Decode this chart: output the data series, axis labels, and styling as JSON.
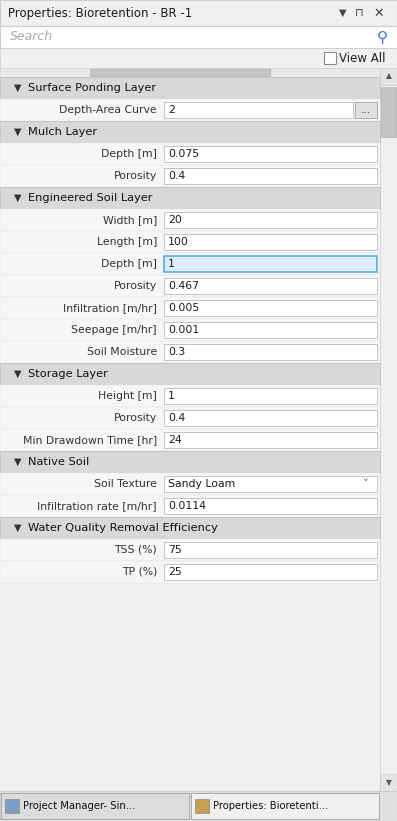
{
  "title": "Properties: Bioretention - BR -1",
  "search_placeholder": "Search",
  "view_all_text": "View All",
  "bg_color": "#f0f0f0",
  "title_bar_bg": "#f0f0f0",
  "search_bg": "#ffffff",
  "viewall_bg": "#f0f0f0",
  "section_header_bg": "#d0d0d0",
  "field_row_bg": "#f8f8f8",
  "field_box_bg": "#ffffff",
  "active_field_bg": "#ddeeff",
  "active_field_border": "#5aaee0",
  "scrollbar_bg": "#e8e8e8",
  "scrollbar_thumb": "#c8c8c8",
  "taskbar_bg": "#e8e8e8",
  "sections": [
    {
      "name": "Surface Ponding Layer",
      "fields": [
        {
          "label": "Depth-Area Curve",
          "value": "2",
          "has_button": true,
          "active": false,
          "is_dropdown": false
        }
      ]
    },
    {
      "name": "Mulch Layer",
      "fields": [
        {
          "label": "Depth [m]",
          "value": "0.075",
          "has_button": false,
          "active": false,
          "is_dropdown": false
        },
        {
          "label": "Porosity",
          "value": "0.4",
          "has_button": false,
          "active": false,
          "is_dropdown": false
        }
      ]
    },
    {
      "name": "Engineered Soil Layer",
      "fields": [
        {
          "label": "Width [m]",
          "value": "20",
          "has_button": false,
          "active": false,
          "is_dropdown": false
        },
        {
          "label": "Length [m]",
          "value": "100",
          "has_button": false,
          "active": false,
          "is_dropdown": false
        },
        {
          "label": "Depth [m]",
          "value": "1",
          "has_button": false,
          "active": true,
          "is_dropdown": false
        },
        {
          "label": "Porosity",
          "value": "0.467",
          "has_button": false,
          "active": false,
          "is_dropdown": false
        },
        {
          "label": "Infiltration [m/hr]",
          "value": "0.005",
          "has_button": false,
          "active": false,
          "is_dropdown": false
        },
        {
          "label": "Seepage [m/hr]",
          "value": "0.001",
          "has_button": false,
          "active": false,
          "is_dropdown": false
        },
        {
          "label": "Soil Moisture",
          "value": "0.3",
          "has_button": false,
          "active": false,
          "is_dropdown": false
        }
      ]
    },
    {
      "name": "Storage Layer",
      "fields": [
        {
          "label": "Height [m]",
          "value": "1",
          "has_button": false,
          "active": false,
          "is_dropdown": false
        },
        {
          "label": "Porosity",
          "value": "0.4",
          "has_button": false,
          "active": false,
          "is_dropdown": false
        },
        {
          "label": "Min Drawdown Time [hr]",
          "value": "24",
          "has_button": false,
          "active": false,
          "is_dropdown": false
        }
      ]
    },
    {
      "name": "Native Soil",
      "fields": [
        {
          "label": "Soil Texture",
          "value": "Sandy Loam",
          "has_button": false,
          "active": false,
          "is_dropdown": true
        },
        {
          "label": "Infiltration rate [m/hr]",
          "value": "0.0114",
          "has_button": false,
          "active": false,
          "is_dropdown": false
        }
      ]
    },
    {
      "name": "Water Quality Removal Efficiency",
      "fields": [
        {
          "label": "TSS (%)",
          "value": "75",
          "has_button": false,
          "active": false,
          "is_dropdown": false
        },
        {
          "label": "TP (%)",
          "value": "25",
          "has_button": false,
          "active": false,
          "is_dropdown": false
        }
      ]
    }
  ],
  "taskbar": [
    "Project Manager- Sin...",
    "Properties: Bioretenti..."
  ]
}
